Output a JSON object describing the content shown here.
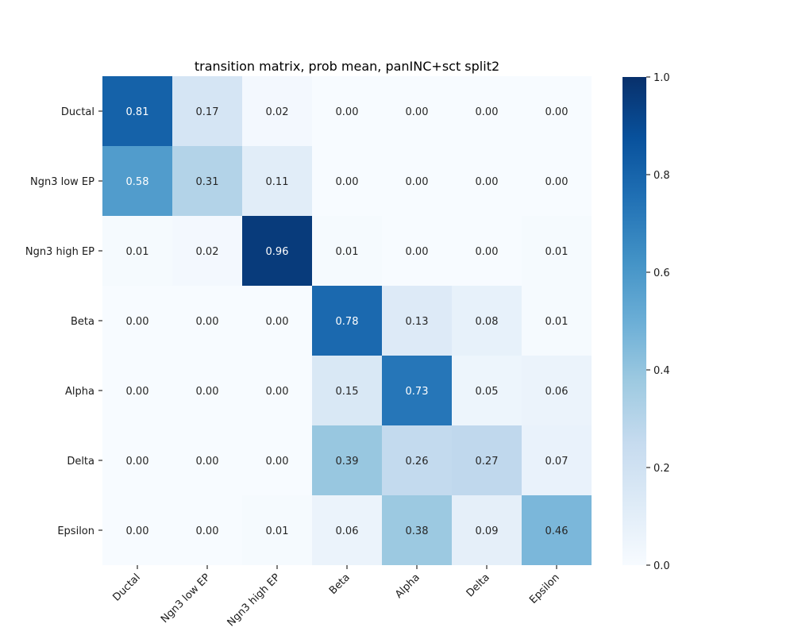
{
  "chart_data": {
    "type": "heatmap",
    "title": "transition matrix, prob mean, panINC+sct split2",
    "xlabel": "",
    "ylabel": "",
    "rows": [
      "Ductal",
      "Ngn3 low EP",
      "Ngn3 high EP",
      "Beta",
      "Alpha",
      "Delta",
      "Epsilon"
    ],
    "cols": [
      "Ductal",
      "Ngn3 low EP",
      "Ngn3 high EP",
      "Beta",
      "Alpha",
      "Delta",
      "Epsilon"
    ],
    "values": [
      [
        0.81,
        0.17,
        0.02,
        0.0,
        0.0,
        0.0,
        0.0
      ],
      [
        0.58,
        0.31,
        0.11,
        0.0,
        0.0,
        0.0,
        0.0
      ],
      [
        0.01,
        0.02,
        0.96,
        0.01,
        0.0,
        0.0,
        0.01
      ],
      [
        0.0,
        0.0,
        0.0,
        0.78,
        0.13,
        0.08,
        0.01
      ],
      [
        0.0,
        0.0,
        0.0,
        0.15,
        0.73,
        0.05,
        0.06
      ],
      [
        0.0,
        0.0,
        0.0,
        0.39,
        0.26,
        0.27,
        0.07
      ],
      [
        0.0,
        0.0,
        0.01,
        0.06,
        0.38,
        0.09,
        0.46
      ]
    ],
    "colorbar": {
      "range": [
        0.0,
        1.0
      ],
      "ticks": [
        "0.0",
        "0.2",
        "0.4",
        "0.6",
        "0.8",
        "1.0"
      ],
      "colormap": "Blues"
    }
  }
}
